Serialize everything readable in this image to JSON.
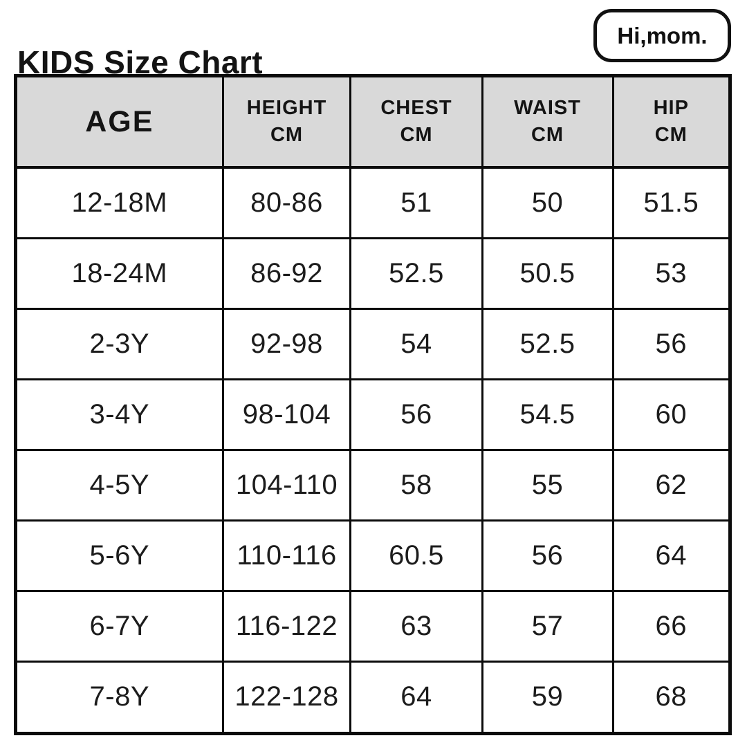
{
  "header": {
    "title": "KIDS Size Chart",
    "logo_text": "Hi,mom."
  },
  "table": {
    "headers": [
      {
        "line1": "AGE",
        "line2": ""
      },
      {
        "line1": "HEIGHT",
        "line2": "CM"
      },
      {
        "line1": "CHEST",
        "line2": "CM"
      },
      {
        "line1": "WAIST",
        "line2": "CM"
      },
      {
        "line1": "HIP",
        "line2": "CM"
      }
    ]
  },
  "chart_data": {
    "type": "table",
    "title": "KIDS Size Chart",
    "columns": [
      "AGE",
      "HEIGHT CM",
      "CHEST CM",
      "WAIST CM",
      "HIP CM"
    ],
    "rows": [
      [
        "12-18M",
        "80-86",
        "51",
        "50",
        "51.5"
      ],
      [
        "18-24M",
        "86-92",
        "52.5",
        "50.5",
        "53"
      ],
      [
        "2-3Y",
        "92-98",
        "54",
        "52.5",
        "56"
      ],
      [
        "3-4Y",
        "98-104",
        "56",
        "54.5",
        "60"
      ],
      [
        "4-5Y",
        "104-110",
        "58",
        "55",
        "62"
      ],
      [
        "5-6Y",
        "110-116",
        "60.5",
        "56",
        "64"
      ],
      [
        "6-7Y",
        "116-122",
        "63",
        "57",
        "66"
      ],
      [
        "7-8Y",
        "122-128",
        "64",
        "59",
        "68"
      ]
    ]
  },
  "colors": {
    "header_bg": "#d9d9d9",
    "border": "#0b0b0b",
    "text": "#141414",
    "background": "#ffffff"
  }
}
